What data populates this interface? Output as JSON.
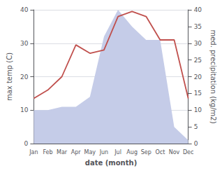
{
  "chart_data": {
    "type": "line",
    "xlabel": "date (month)",
    "ylabel": "max temp (C)",
    "y2label": "med. precipitation (kg/m2)",
    "categories": [
      "Jan",
      "Feb",
      "Mar",
      "Apr",
      "May",
      "Jun",
      "Jul",
      "Aug",
      "Sep",
      "Oct",
      "Nov",
      "Dec"
    ],
    "series": [
      {
        "type": "area",
        "axis": "y2",
        "color": "#c5cce8",
        "values": [
          10.0,
          10.0,
          11.0,
          11.0,
          14.0,
          32.0,
          40.0,
          35.0,
          31.0,
          31.0,
          5.0,
          1.0
        ]
      },
      {
        "type": "line",
        "color": "#c0504d",
        "values": [
          13.5,
          16.0,
          20.0,
          29.5,
          27.0,
          28.0,
          38.0,
          39.5,
          38.0,
          31.0,
          31.0,
          13.5
        ]
      }
    ],
    "ylim": [
      0,
      40
    ],
    "yticks": [
      0,
      10,
      20,
      30,
      40
    ],
    "y2lim": [
      0,
      40
    ],
    "y2ticks": [
      0,
      5,
      10,
      15,
      20,
      25,
      30,
      35,
      40
    ],
    "grid": true
  }
}
